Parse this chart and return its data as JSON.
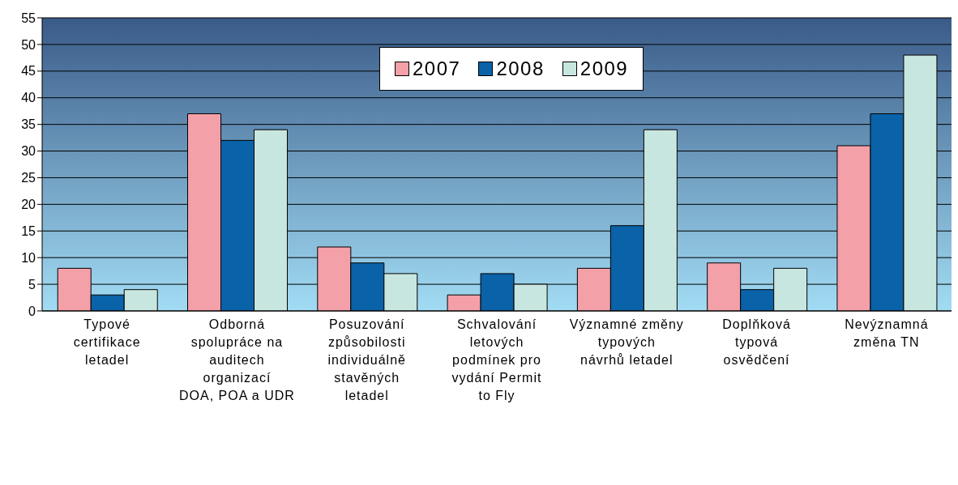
{
  "chart_data": {
    "type": "bar",
    "categories": [
      "Typové certifikace letadel",
      "Odborná spolupráce na auditech organizací DOA, POA a UDR",
      "Posuzování způsobilosti individuálně stavěných letadel",
      "Schvalování letových podmínek pro vydání Permit to Fly",
      "Významné změny typových návrhů letadel",
      "Doplňková typová osvědčení",
      "Nevýznamná změna TN"
    ],
    "series": [
      {
        "name": "2007",
        "color": "#f4a0a8",
        "values": [
          8,
          37,
          12,
          3,
          8,
          9,
          31
        ]
      },
      {
        "name": "2008",
        "color": "#0a62a8",
        "values": [
          3,
          32,
          9,
          7,
          16,
          4,
          37
        ]
      },
      {
        "name": "2009",
        "color": "#c8e6e0",
        "values": [
          4,
          34,
          7,
          5,
          34,
          8,
          48
        ]
      }
    ],
    "ylim": [
      0,
      55
    ],
    "yticks": [
      0,
      5,
      10,
      15,
      20,
      25,
      30,
      35,
      40,
      45,
      50,
      55
    ],
    "grid": "y",
    "legend": "top right"
  }
}
